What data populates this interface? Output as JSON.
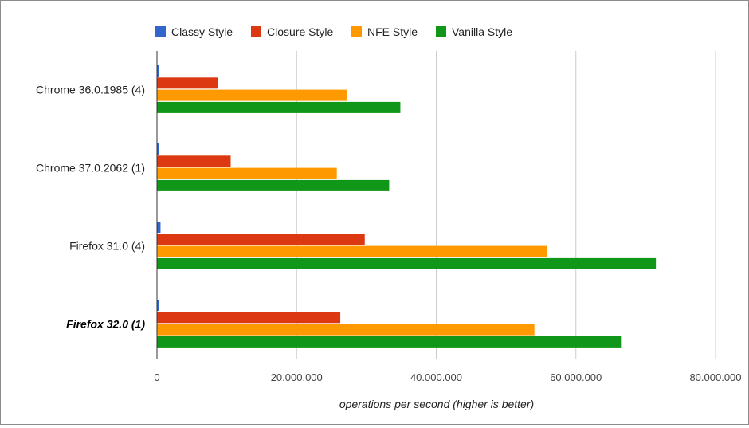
{
  "chart_data": {
    "type": "bar",
    "orientation": "horizontal",
    "categories": [
      "Chrome 36.0.1985 (4)",
      "Chrome 37.0.2062 (1)",
      "Firefox 31.0 (4)",
      "Firefox 32.0 (1)"
    ],
    "highlighted_category": "Firefox 32.0 (1)",
    "series": [
      {
        "name": "Classy Style",
        "color": "#3366cc",
        "values": [
          150000,
          150000,
          450000,
          250000
        ]
      },
      {
        "name": "Closure Style",
        "color": "#dc3912",
        "values": [
          8700000,
          10500000,
          29700000,
          26200000
        ]
      },
      {
        "name": "NFE Style",
        "color": "#ff9900",
        "values": [
          27100000,
          25700000,
          55800000,
          54000000
        ]
      },
      {
        "name": "Vanilla Style",
        "color": "#109618",
        "values": [
          34800000,
          33200000,
          71400000,
          66400000
        ]
      }
    ],
    "xlabel": "operations per second (higher is better)",
    "xlim": [
      0,
      80000000
    ],
    "ticks": [
      0,
      20000000,
      40000000,
      60000000,
      80000000
    ],
    "tick_labels": [
      "0",
      "20.000.000",
      "40.000.000",
      "60.000.000",
      "80.000.000"
    ],
    "legend_position": "top",
    "grid": true
  }
}
